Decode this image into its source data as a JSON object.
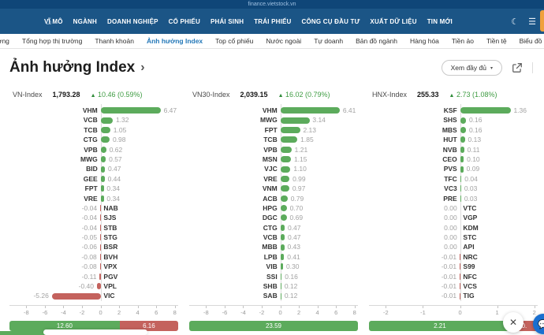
{
  "browser": {
    "url": "finance.vietstock.vn"
  },
  "icons": {
    "home": "⌂",
    "dark_mode": "☾",
    "menu": "☰",
    "caret": "▾",
    "title_chevron": "›",
    "up_arrow": "▲",
    "close": "✕",
    "chat": "💬"
  },
  "colors": {
    "strip_blue": "#0f4678",
    "nav_blue": "#1b5586",
    "active_tab": "#2478b8",
    "bar_green": "#5cab5c",
    "bar_red": "#c4625d",
    "change_green": "#3f9c43"
  },
  "navbar": {
    "items": [
      "VĨ MÔ",
      "NGÀNH",
      "DOANH NGHIỆP",
      "CỔ PHIẾU",
      "PHÁI SINH",
      "TRÁI PHIẾU",
      "CÔNG CỤ ĐẦU TƯ",
      "XUẤT DỮ LIỆU",
      "TIN MỚI"
    ]
  },
  "subnav": {
    "items": [
      {
        "label": "trường",
        "active": false
      },
      {
        "label": "Tổng hợp thị trường",
        "active": false
      },
      {
        "label": "Thanh khoản",
        "active": false
      },
      {
        "label": "Ảnh hưởng Index",
        "active": true
      },
      {
        "label": "Top cổ phiếu",
        "active": false
      },
      {
        "label": "Nước ngoài",
        "active": false
      },
      {
        "label": "Tự doanh",
        "active": false
      },
      {
        "label": "Bản đồ ngành",
        "active": false
      },
      {
        "label": "Hàng hóa",
        "active": false
      },
      {
        "label": "Tiền ảo",
        "active": false
      },
      {
        "label": "Tiền tệ",
        "active": false
      },
      {
        "label": "Biểu đồ",
        "active": false
      },
      {
        "label": "T",
        "active": false
      }
    ]
  },
  "header": {
    "title": "Ảnh hưởng Index",
    "view_full_label": "Xem đầy đủ"
  },
  "chart_data": [
    {
      "type": "bar",
      "title": "VN-Index",
      "index_value": "1,793.28",
      "index_change": "10.46 (0.59%)",
      "xlabel": "",
      "ylabel": "",
      "xlim": [
        -8,
        8
      ],
      "x_ticks": [
        -8,
        -6,
        -4,
        -2,
        0,
        2,
        4,
        6,
        8
      ],
      "bars": [
        {
          "ticker": "VHM",
          "value": 6.47
        },
        {
          "ticker": "VCB",
          "value": 1.32
        },
        {
          "ticker": "TCB",
          "value": 1.05
        },
        {
          "ticker": "CTG",
          "value": 0.98
        },
        {
          "ticker": "VPB",
          "value": 0.62
        },
        {
          "ticker": "MWG",
          "value": 0.57
        },
        {
          "ticker": "BID",
          "value": 0.47
        },
        {
          "ticker": "GEE",
          "value": 0.44
        },
        {
          "ticker": "FPT",
          "value": 0.34
        },
        {
          "ticker": "VRE",
          "value": 0.34
        },
        {
          "ticker": "NAB",
          "value": -0.04
        },
        {
          "ticker": "SJS",
          "value": -0.04
        },
        {
          "ticker": "STB",
          "value": -0.04
        },
        {
          "ticker": "STG",
          "value": -0.05
        },
        {
          "ticker": "BSR",
          "value": -0.06
        },
        {
          "ticker": "BVH",
          "value": -0.08
        },
        {
          "ticker": "VPX",
          "value": -0.08
        },
        {
          "ticker": "PGV",
          "value": -0.11
        },
        {
          "ticker": "VPL",
          "value": -0.4
        },
        {
          "ticker": "VIC",
          "value": -5.26
        }
      ],
      "summary_segments": [
        {
          "kind": "positive",
          "label": "12.60",
          "weight": 12.6
        },
        {
          "kind": "negative",
          "label": "6.16",
          "weight": 6.16
        }
      ]
    },
    {
      "type": "bar",
      "title": "VN30-Index",
      "index_value": "2,039.15",
      "index_change": "16.02 (0.79%)",
      "xlabel": "",
      "ylabel": "",
      "xlim": [
        -8,
        8
      ],
      "x_ticks": [
        -8,
        -6,
        -4,
        -2,
        0,
        2,
        4,
        6,
        8
      ],
      "bars": [
        {
          "ticker": "VHM",
          "value": 6.41
        },
        {
          "ticker": "MWG",
          "value": 3.14
        },
        {
          "ticker": "FPT",
          "value": 2.13
        },
        {
          "ticker": "TCB",
          "value": 1.85
        },
        {
          "ticker": "VPB",
          "value": 1.21
        },
        {
          "ticker": "MSN",
          "value": 1.15
        },
        {
          "ticker": "VJC",
          "value": 1.1
        },
        {
          "ticker": "VRE",
          "value": 0.99
        },
        {
          "ticker": "VNM",
          "value": 0.97
        },
        {
          "ticker": "ACB",
          "value": 0.79
        },
        {
          "ticker": "HPG",
          "value": 0.7
        },
        {
          "ticker": "DGC",
          "value": 0.69
        },
        {
          "ticker": "CTG",
          "value": 0.47
        },
        {
          "ticker": "VCB",
          "value": 0.47
        },
        {
          "ticker": "MBB",
          "value": 0.43
        },
        {
          "ticker": "LPB",
          "value": 0.41
        },
        {
          "ticker": "VIB",
          "value": 0.3
        },
        {
          "ticker": "SSI",
          "value": 0.16
        },
        {
          "ticker": "SHB",
          "value": 0.12
        },
        {
          "ticker": "SAB",
          "value": 0.12
        }
      ],
      "summary_segments": [
        {
          "kind": "positive",
          "label": "23.59",
          "weight": 23.59
        }
      ]
    },
    {
      "type": "bar",
      "title": "HNX-Index",
      "index_value": "255.33",
      "index_change": "2.73 (1.08%)",
      "xlabel": "",
      "ylabel": "",
      "xlim": [
        -2,
        2
      ],
      "x_ticks": [
        -2,
        -1,
        0,
        1,
        2
      ],
      "bars": [
        {
          "ticker": "KSF",
          "value": 1.36
        },
        {
          "ticker": "SHS",
          "value": 0.16
        },
        {
          "ticker": "MBS",
          "value": 0.16
        },
        {
          "ticker": "HUT",
          "value": 0.13
        },
        {
          "ticker": "NVB",
          "value": 0.11
        },
        {
          "ticker": "CEO",
          "value": 0.1
        },
        {
          "ticker": "PVS",
          "value": 0.09
        },
        {
          "ticker": "TFC",
          "value": 0.04
        },
        {
          "ticker": "VC3",
          "value": 0.03
        },
        {
          "ticker": "PRE",
          "value": 0.03
        },
        {
          "ticker": "VTC",
          "value": 0.0
        },
        {
          "ticker": "VGP",
          "value": 0.0
        },
        {
          "ticker": "KDM",
          "value": 0.0
        },
        {
          "ticker": "STC",
          "value": 0.0
        },
        {
          "ticker": "API",
          "value": 0.0
        },
        {
          "ticker": "NRC",
          "value": -0.01
        },
        {
          "ticker": "S99",
          "value": -0.01
        },
        {
          "ticker": "NFC",
          "value": -0.01
        },
        {
          "ticker": "VCS",
          "value": -0.01
        },
        {
          "ticker": "TIG",
          "value": -0.01
        }
      ],
      "summary_segments": [
        {
          "kind": "positive",
          "label": "2.21",
          "weight": 2.21
        },
        {
          "kind": "negative",
          "label": "0.",
          "weight": 0.37
        }
      ]
    }
  ]
}
